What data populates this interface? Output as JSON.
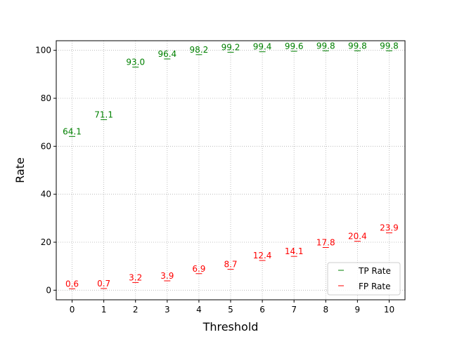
{
  "chart_data": {
    "type": "scatter",
    "title": "",
    "xlabel": "Threshold",
    "ylabel": "Rate",
    "x": [
      0,
      1,
      2,
      3,
      4,
      5,
      6,
      7,
      8,
      9,
      10
    ],
    "xlim": [
      -0.5,
      10.5
    ],
    "ylim": [
      -4,
      104
    ],
    "xticks": [
      "0",
      "1",
      "2",
      "3",
      "4",
      "5",
      "6",
      "7",
      "8",
      "9",
      "10"
    ],
    "yticks": [
      "0",
      "20",
      "40",
      "60",
      "80",
      "100"
    ],
    "grid": true,
    "grid_style": "dotted",
    "marker": "horizontal-line",
    "legend_position": "bottom-right",
    "series": [
      {
        "name": "TP Rate",
        "color": "#008000",
        "values": [
          64.1,
          71.1,
          93.0,
          96.4,
          98.2,
          99.2,
          99.4,
          99.6,
          99.8,
          99.8,
          99.8
        ],
        "labels": [
          "64.1",
          "71.1",
          "93.0",
          "96.4",
          "98.2",
          "99.2",
          "99.4",
          "99.6",
          "99.8",
          "99.8",
          "99.8"
        ]
      },
      {
        "name": "FP Rate",
        "color": "#ff0000",
        "values": [
          0.6,
          0.7,
          3.2,
          3.9,
          6.9,
          8.7,
          12.4,
          14.1,
          17.8,
          20.4,
          23.9
        ],
        "labels": [
          "0.6",
          "0.7",
          "3.2",
          "3.9",
          "6.9",
          "8.7",
          "12.4",
          "14.1",
          "17.8",
          "20.4",
          "23.9"
        ]
      }
    ]
  }
}
